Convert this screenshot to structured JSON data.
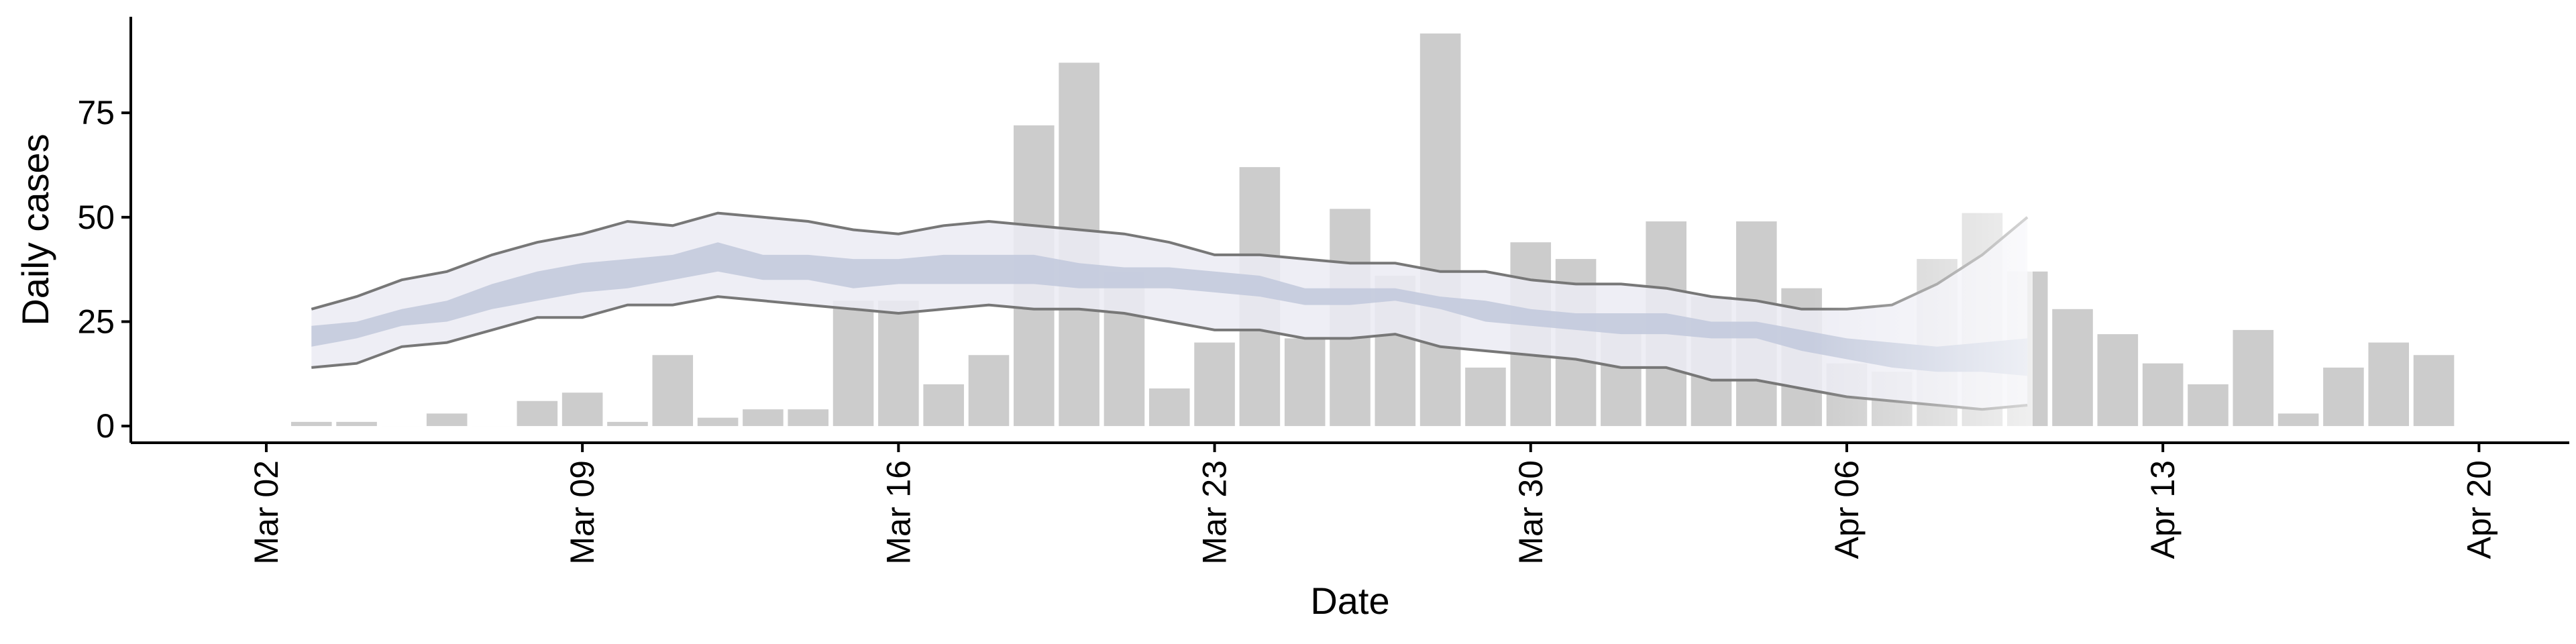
{
  "chart_data": {
    "type": "bar",
    "title": "",
    "xlabel": "Date",
    "ylabel": "Daily cases",
    "ylim": [
      -4,
      98
    ],
    "yticks": [
      0,
      25,
      50,
      75
    ],
    "xlim": [
      "2020-02-28",
      "2020-04-22"
    ],
    "xticks": [
      {
        "date": "2020-03-02",
        "label": "Mar 02"
      },
      {
        "date": "2020-03-09",
        "label": "Mar 09"
      },
      {
        "date": "2020-03-16",
        "label": "Mar 16"
      },
      {
        "date": "2020-03-23",
        "label": "Mar 23"
      },
      {
        "date": "2020-03-30",
        "label": "Mar 30"
      },
      {
        "date": "2020-04-06",
        "label": "Apr 06"
      },
      {
        "date": "2020-04-13",
        "label": "Apr 13"
      },
      {
        "date": "2020-04-20",
        "label": "Apr 20"
      }
    ],
    "grid": false,
    "colors": {
      "bars": "#cccccc",
      "band_outer": "#ebebf3",
      "band_inner": "#c3cadd",
      "band_lines": "#777777"
    },
    "bars": {
      "dates": [
        "2020-03-03",
        "2020-03-04",
        "2020-03-05",
        "2020-03-06",
        "2020-03-07",
        "2020-03-08",
        "2020-03-09",
        "2020-03-10",
        "2020-03-11",
        "2020-03-12",
        "2020-03-13",
        "2020-03-14",
        "2020-03-15",
        "2020-03-16",
        "2020-03-17",
        "2020-03-18",
        "2020-03-19",
        "2020-03-20",
        "2020-03-21",
        "2020-03-22",
        "2020-03-23",
        "2020-03-24",
        "2020-03-25",
        "2020-03-26",
        "2020-03-27",
        "2020-03-28",
        "2020-03-29",
        "2020-03-30",
        "2020-03-31",
        "2020-04-01",
        "2020-04-02",
        "2020-04-03",
        "2020-04-04",
        "2020-04-05",
        "2020-04-06",
        "2020-04-07",
        "2020-04-08",
        "2020-04-09",
        "2020-04-10",
        "2020-04-11",
        "2020-04-12",
        "2020-04-13",
        "2020-04-14",
        "2020-04-15",
        "2020-04-16",
        "2020-04-17",
        "2020-04-18",
        "2020-04-19"
      ],
      "values": [
        1,
        1,
        0,
        3,
        0,
        6,
        8,
        1,
        17,
        2,
        4,
        4,
        30,
        30,
        10,
        17,
        72,
        87,
        37,
        9,
        20,
        62,
        21,
        52,
        36,
        94,
        14,
        44,
        40,
        23,
        49,
        31,
        49,
        33,
        15,
        13,
        40,
        51,
        37,
        28,
        22,
        15,
        10,
        23,
        3,
        14,
        20,
        17
      ]
    },
    "estimate_band": {
      "dates": [
        "2020-03-03",
        "2020-03-04",
        "2020-03-05",
        "2020-03-06",
        "2020-03-07",
        "2020-03-08",
        "2020-03-09",
        "2020-03-10",
        "2020-03-11",
        "2020-03-12",
        "2020-03-13",
        "2020-03-14",
        "2020-03-15",
        "2020-03-16",
        "2020-03-17",
        "2020-03-18",
        "2020-03-19",
        "2020-03-20",
        "2020-03-21",
        "2020-03-22",
        "2020-03-23",
        "2020-03-24",
        "2020-03-25",
        "2020-03-26",
        "2020-03-27",
        "2020-03-28",
        "2020-03-29",
        "2020-03-30",
        "2020-03-31",
        "2020-04-01",
        "2020-04-02",
        "2020-04-03",
        "2020-04-04",
        "2020-04-05",
        "2020-04-06",
        "2020-04-07",
        "2020-04-08",
        "2020-04-09",
        "2020-04-10"
      ],
      "outer_upper": [
        28,
        31,
        35,
        37,
        41,
        44,
        46,
        49,
        48,
        51,
        50,
        49,
        47,
        46,
        48,
        49,
        48,
        47,
        46,
        44,
        41,
        41,
        40,
        39,
        39,
        37,
        37,
        35,
        34,
        34,
        33,
        31,
        30,
        28,
        28,
        29,
        34,
        41,
        50
      ],
      "outer_lower": [
        14,
        15,
        19,
        20,
        23,
        26,
        26,
        29,
        29,
        31,
        30,
        29,
        28,
        27,
        28,
        29,
        28,
        28,
        27,
        25,
        23,
        23,
        21,
        21,
        22,
        19,
        18,
        17,
        16,
        14,
        14,
        11,
        11,
        9,
        7,
        6,
        5,
        4,
        5
      ],
      "inner_upper": [
        24,
        25,
        28,
        30,
        34,
        37,
        39,
        40,
        41,
        44,
        41,
        41,
        40,
        40,
        41,
        41,
        41,
        39,
        38,
        38,
        37,
        36,
        33,
        33,
        33,
        31,
        30,
        28,
        27,
        27,
        27,
        25,
        25,
        23,
        21,
        20,
        19,
        20,
        21
      ],
      "inner_lower": [
        19,
        21,
        24,
        25,
        28,
        30,
        32,
        33,
        35,
        37,
        35,
        35,
        33,
        34,
        34,
        34,
        34,
        33,
        33,
        33,
        32,
        31,
        29,
        29,
        30,
        28,
        25,
        24,
        23,
        22,
        22,
        21,
        21,
        18,
        16,
        14,
        13,
        13,
        12
      ]
    }
  }
}
